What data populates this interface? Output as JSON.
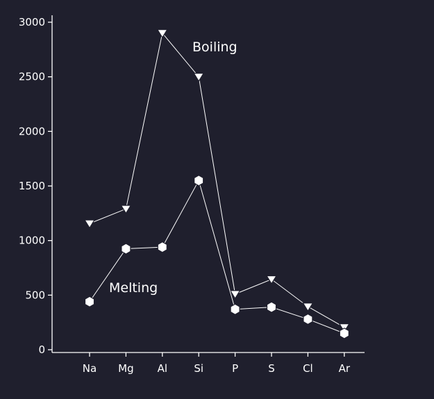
{
  "chart_data": {
    "type": "line",
    "title": "",
    "xlabel": "",
    "ylabel": "",
    "categories": [
      "Na",
      "Mg",
      "Al",
      "Si",
      "P",
      "S",
      "Cl",
      "Ar"
    ],
    "ylim": [
      0,
      3000
    ],
    "yticks": [
      0,
      500,
      1000,
      1500,
      2000,
      2500,
      3000
    ],
    "grid": false,
    "series": [
      {
        "name": "Boiling",
        "marker": "triangle-down",
        "values": [
          1156,
          1290,
          2900,
          2500,
          510,
          645,
          395,
          205
        ]
      },
      {
        "name": "Melting",
        "marker": "hexagon",
        "values": [
          440,
          925,
          940,
          1550,
          370,
          390,
          280,
          150
        ]
      }
    ],
    "colors": {
      "background": "#1f1f2d",
      "foreground": "#ffffff"
    }
  }
}
